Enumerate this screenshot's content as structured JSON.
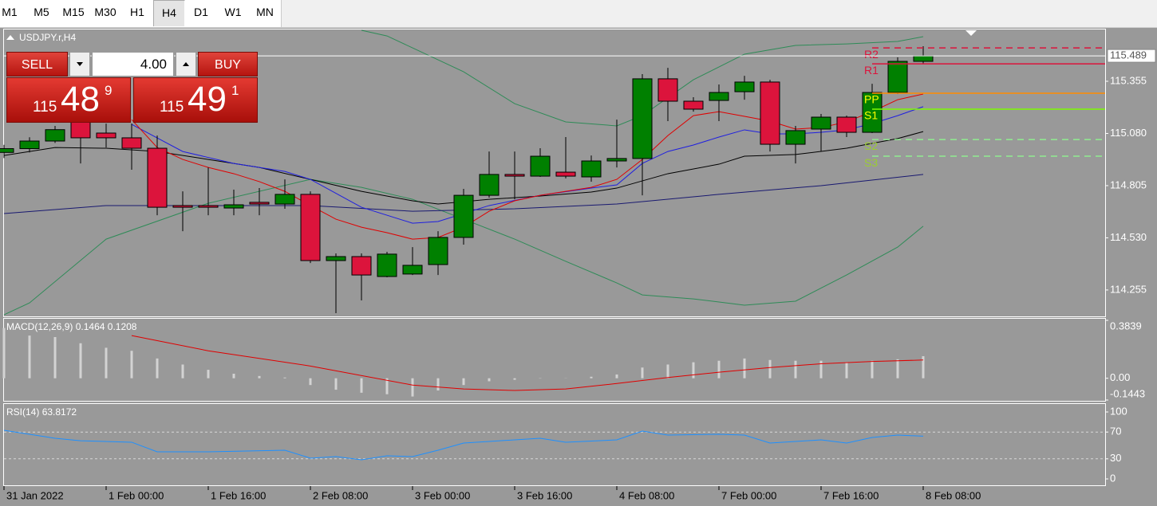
{
  "toolbar": {
    "timeframes": [
      "M1",
      "M5",
      "M15",
      "M30",
      "H1",
      "H4",
      "D1",
      "W1",
      "MN"
    ],
    "active": "H4"
  },
  "trade_panel": {
    "sell": "SELL",
    "buy": "BUY",
    "lots": "4.00",
    "sell_price": {
      "small": "115",
      "main": "48",
      "super": "9"
    },
    "buy_price": {
      "small": "115",
      "main": "49",
      "super": "1"
    }
  },
  "chart_data": [
    {
      "type": "candlestick",
      "title": "USDJPY.r,H4",
      "categories": [
        "31 Jan 2022",
        null,
        null,
        null,
        "1 Feb 00:00",
        null,
        null,
        null,
        "1 Feb 16:00",
        null,
        null,
        null,
        "2 Feb 08:00",
        null,
        null,
        null,
        "3 Feb 00:00",
        null,
        null,
        null,
        "3 Feb 16:00",
        null,
        null,
        null,
        "4 Feb 08:00",
        null,
        null,
        null,
        "7 Feb 00:00",
        null,
        null,
        null,
        "7 Feb 16:00",
        null,
        null,
        null,
        "8 Feb 08:00"
      ],
      "open": [
        114.98,
        115.0,
        115.04,
        115.153,
        115.082,
        115.057,
        115.002,
        114.7,
        114.7,
        114.687,
        114.717,
        114.708,
        114.759,
        114.41,
        114.431,
        114.326,
        114.339,
        114.389,
        114.532,
        114.754,
        114.864,
        114.855,
        114.876,
        114.851,
        114.935,
        114.948,
        115.368,
        115.25,
        115.254,
        115.3,
        115.351,
        115.023,
        115.103,
        115.166,
        115.086,
        115.296,
        115.46
      ],
      "high": [
        115.02,
        115.06,
        115.12,
        115.195,
        115.132,
        115.132,
        115.069,
        114.775,
        114.901,
        114.784,
        114.792,
        114.838,
        114.775,
        114.448,
        114.448,
        114.456,
        114.481,
        114.565,
        114.788,
        114.985,
        114.985,
        115.002,
        115.061,
        114.964,
        115.153,
        115.393,
        115.426,
        115.271,
        115.338,
        115.384,
        115.363,
        115.12,
        115.183,
        115.174,
        115.342,
        115.481,
        115.54
      ],
      "low": [
        114.95,
        114.98,
        115.03,
        114.922,
        115.006,
        114.889,
        114.649,
        114.565,
        114.649,
        114.649,
        114.649,
        114.683,
        114.397,
        114.133,
        114.2,
        114.322,
        114.334,
        114.334,
        114.494,
        114.742,
        114.733,
        114.851,
        114.843,
        114.826,
        114.901,
        114.754,
        115.145,
        115.195,
        115.145,
        115.258,
        114.985,
        114.922,
        114.985,
        115.061,
        115.082,
        115.288,
        115.447
      ],
      "close": [
        115.0,
        115.04,
        115.1,
        115.057,
        115.057,
        115.002,
        114.691,
        114.691,
        114.691,
        114.704,
        114.708,
        114.759,
        114.41,
        114.431,
        114.334,
        114.444,
        114.385,
        114.532,
        114.754,
        114.864,
        114.855,
        114.96,
        114.855,
        114.935,
        114.948,
        115.368,
        115.25,
        115.208,
        115.296,
        115.351,
        115.023,
        115.095,
        115.166,
        115.086,
        115.296,
        115.46,
        115.489
      ],
      "up_color": "#008000",
      "down_color": "#dc143c",
      "ylim": [
        114.116,
        115.628
      ],
      "yticks": [
        115.355,
        {
          "value": 115.08,
          "label": "115.080"
        },
        114.805,
        {
          "value": 114.53,
          "label": "114.530"
        },
        114.255
      ],
      "last_price": 115.489,
      "overlays": [
        {
          "color": "#2e8b57",
          "x": [
            14,
            15,
            16,
            18,
            20,
            22,
            24,
            25,
            27,
            29,
            31,
            33,
            35,
            36
          ],
          "values": [
            115.624,
            115.594,
            115.531,
            115.405,
            115.237,
            115.141,
            115.12,
            115.174,
            115.363,
            115.498,
            115.544,
            115.552,
            115.565,
            115.59
          ]
        },
        {
          "color": "#2e8b57",
          "x": [
            0,
            1,
            4,
            8,
            12,
            14,
            16,
            18,
            20,
            22,
            24,
            25,
            27,
            29,
            31,
            33,
            35,
            36
          ],
          "values": [
            114.124,
            114.187,
            114.523,
            114.712,
            114.838,
            114.796,
            114.733,
            114.628,
            114.523,
            114.406,
            114.292,
            114.229,
            114.208,
            114.175,
            114.196,
            114.334,
            114.481,
            114.591
          ]
        },
        {
          "color": "#191970",
          "x": [
            0,
            4,
            8,
            12,
            16,
            20,
            24,
            28,
            32,
            36
          ],
          "values": [
            114.658,
            114.7,
            114.7,
            114.7,
            114.67,
            114.683,
            114.708,
            114.759,
            114.805,
            114.864
          ]
        },
        {
          "color": "#000000",
          "x": [
            0,
            2,
            4,
            6,
            8,
            10,
            12,
            14,
            16,
            17,
            19,
            21,
            23,
            24,
            26,
            28,
            29,
            31,
            33,
            35,
            36
          ],
          "values": [
            114.964,
            115.006,
            115.002,
            114.985,
            114.943,
            114.901,
            114.838,
            114.775,
            114.725,
            114.708,
            114.733,
            114.75,
            114.771,
            114.792,
            114.868,
            114.918,
            114.96,
            114.969,
            115.002,
            115.053,
            115.09
          ]
        },
        {
          "color": "#1f1fe0",
          "x": [
            5,
            7,
            9,
            11,
            12,
            14,
            16,
            17,
            18,
            19,
            21,
            23,
            24,
            25,
            26,
            27,
            28,
            29,
            30,
            31,
            32,
            33,
            34,
            35,
            36
          ],
          "values": [
            115.128,
            114.985,
            114.922,
            114.88,
            114.838,
            114.691,
            114.607,
            114.616,
            114.658,
            114.7,
            114.754,
            114.792,
            114.809,
            114.922,
            114.985,
            115.019,
            115.061,
            115.099,
            115.078,
            115.078,
            115.086,
            115.099,
            115.132,
            115.174,
            115.221
          ]
        },
        {
          "color": "#e00000",
          "x": [
            5,
            6,
            7,
            8,
            9,
            10,
            11,
            12,
            13,
            14,
            15,
            16,
            17,
            18,
            19,
            20,
            21,
            22,
            23,
            24,
            25,
            26,
            27,
            28,
            29,
            30,
            31,
            32,
            33,
            34,
            35,
            36
          ],
          "values": [
            115.153,
            115.006,
            114.943,
            114.901,
            114.868,
            114.826,
            114.775,
            114.7,
            114.628,
            114.586,
            114.557,
            114.523,
            114.532,
            114.586,
            114.67,
            114.725,
            114.754,
            114.775,
            114.796,
            114.838,
            114.943,
            115.069,
            115.174,
            115.195,
            115.17,
            115.145,
            115.103,
            115.111,
            115.141,
            115.195,
            115.258,
            115.288
          ]
        }
      ],
      "pivots": [
        {
          "label": "R2",
          "value": 115.531,
          "color": "#dc143c",
          "label_color": "#dc143c",
          "dashed": true
        },
        {
          "label": "R1",
          "value": 115.447,
          "color": "#dc143c",
          "label_color": "#dc143c",
          "dashed": false
        },
        {
          "label": "PP",
          "value": 115.292,
          "color": "#ff8c00",
          "label_color": "#ffff00",
          "dashed": false
        },
        {
          "label": "S1",
          "value": 115.208,
          "color": "#7cfc00",
          "label_color": "#ffff00",
          "dashed": false
        },
        {
          "label": "S2",
          "value": 115.048,
          "color": "#90ee90",
          "label_color": "#9acd32",
          "dashed": true
        },
        {
          "label": "S3",
          "value": 114.96,
          "color": "#90ee90",
          "label_color": "#9acd32",
          "dashed": true
        }
      ]
    },
    {
      "type": "macd",
      "title": "MACD(12,26,9)",
      "histogram": {
        "color": "#d3d3d3",
        "values": [
          0.333,
          0.283,
          0.273,
          0.232,
          0.202,
          0.182,
          0.131,
          0.091,
          0.056,
          0.03,
          0.015,
          0.005,
          -0.045,
          -0.076,
          -0.096,
          -0.106,
          -0.121,
          -0.081,
          -0.045,
          -0.02,
          -0.01,
          -0.002,
          0.001,
          0.01,
          0.025,
          0.071,
          0.091,
          0.106,
          0.116,
          0.131,
          0.121,
          0.116,
          0.116,
          0.106,
          0.116,
          0.126,
          0.1464
        ]
      },
      "signal": {
        "color": "#e00000",
        "x": [
          5,
          8,
          12,
          16,
          18,
          20,
          22,
          24,
          26,
          28,
          30,
          32,
          34,
          36
        ],
        "values": [
          0.283,
          0.182,
          0.081,
          -0.045,
          -0.071,
          -0.081,
          -0.071,
          -0.035,
          0.005,
          0.04,
          0.071,
          0.096,
          0.111,
          0.1208
        ]
      },
      "ylim": [
        -0.1443,
        0.3839
      ],
      "yticks": [
        0.3839,
        {
          "value": 0,
          "label": "0.00"
        },
        -0.1443
      ]
    },
    {
      "type": "line",
      "title": "RSI(14)",
      "color": "#1e90ff",
      "x": [
        0,
        2,
        3,
        5,
        6,
        8,
        11,
        12,
        13,
        14,
        15,
        16,
        17,
        18,
        19,
        21,
        22,
        24,
        25,
        26,
        28,
        29,
        30,
        32,
        33,
        34,
        35,
        36
      ],
      "values": [
        72.6,
        60.7,
        57.0,
        54.8,
        40.5,
        40.5,
        42.9,
        31.0,
        33.3,
        28.6,
        34.5,
        33.3,
        42.9,
        53.6,
        56.0,
        60.7,
        54.8,
        58.3,
        71.4,
        65.5,
        66.7,
        65.5,
        53.6,
        58.3,
        53.6,
        61.9,
        65.5,
        63.8172
      ],
      "ylim": [
        0,
        100
      ],
      "yticks": [
        100,
        70,
        30,
        0
      ],
      "tick_lines": true
    }
  ]
}
